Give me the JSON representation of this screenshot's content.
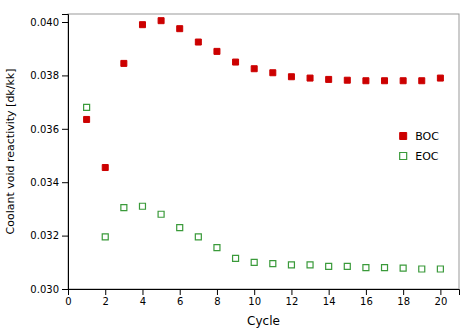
{
  "chart_data": {
    "type": "scatter",
    "x_label": "Cycle",
    "y_label": "Coolant void reactivity [dk/kk]",
    "xlim": [
      0,
      21
    ],
    "ylim": [
      0.03,
      0.0403
    ],
    "xticks": [
      0,
      2,
      4,
      6,
      8,
      10,
      12,
      14,
      16,
      18,
      20
    ],
    "yticks": [
      {
        "value": 0.03,
        "label": "0.030"
      },
      0.032,
      0.034,
      0.036,
      0.038,
      {
        "value": 0.04,
        "label": "0.040"
      }
    ],
    "grid": false,
    "legend": "right",
    "series": [
      {
        "name": "BOC",
        "color": "#cc0000",
        "marker": "square",
        "x": [
          1,
          2,
          3,
          4,
          5,
          6,
          7,
          8,
          9,
          10,
          11,
          12,
          13,
          14,
          15,
          16,
          17,
          18,
          19,
          20
        ],
        "values": [
          0.03635,
          0.03455,
          0.03845,
          0.0399,
          0.04005,
          0.03975,
          0.03925,
          0.0389,
          0.0385,
          0.03825,
          0.0381,
          0.03795,
          0.0379,
          0.03785,
          0.03782,
          0.0378,
          0.0378,
          0.0378,
          0.0378,
          0.0379
        ]
      },
      {
        "name": "EOC",
        "color": "#3a9a3a",
        "marker": "open-square",
        "x": [
          1,
          2,
          3,
          4,
          5,
          6,
          7,
          8,
          9,
          10,
          11,
          12,
          13,
          14,
          15,
          16,
          17,
          18,
          19,
          20
        ],
        "values": [
          0.0368,
          0.03195,
          0.03305,
          0.0331,
          0.0328,
          0.0323,
          0.03195,
          0.03155,
          0.03115,
          0.031,
          0.03095,
          0.0309,
          0.0309,
          0.03085,
          0.03085,
          0.0308,
          0.0308,
          0.03078,
          0.03075,
          0.03075
        ]
      }
    ]
  }
}
